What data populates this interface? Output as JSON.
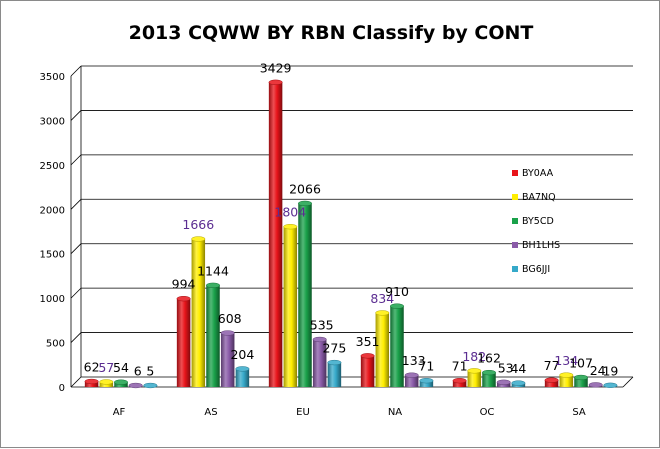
{
  "chart_data": {
    "type": "bar",
    "title": "2013  CQWW BY RBN  Classify by CONT",
    "xlabel": "",
    "ylabel": "",
    "categories": [
      "AF",
      "AS",
      "EU",
      "NA",
      "OC",
      "SA"
    ],
    "ylim": [
      0,
      3500
    ],
    "yticks": [
      "0",
      "500",
      "1000",
      "1500",
      "2000",
      "2500",
      "3000",
      "3500"
    ],
    "grid": true,
    "legend_position": "right",
    "series": [
      {
        "name": "BY0AA",
        "color": "#e8141a",
        "values": [
          62,
          994,
          3429,
          351,
          71,
          77
        ]
      },
      {
        "name": "BA7NQ",
        "color": "#ffee00",
        "values": [
          57,
          1666,
          1804,
          834,
          182,
          134
        ]
      },
      {
        "name": "BY5CD",
        "color": "#1aa14a",
        "values": [
          54,
          1144,
          2066,
          910,
          162,
          107
        ]
      },
      {
        "name": "BH1LHS",
        "color": "#8a5ba8",
        "values": [
          6,
          608,
          535,
          133,
          53,
          24
        ]
      },
      {
        "name": "BG6JJI",
        "color": "#35a9c9",
        "values": [
          5,
          204,
          275,
          71,
          44,
          19
        ]
      }
    ]
  }
}
